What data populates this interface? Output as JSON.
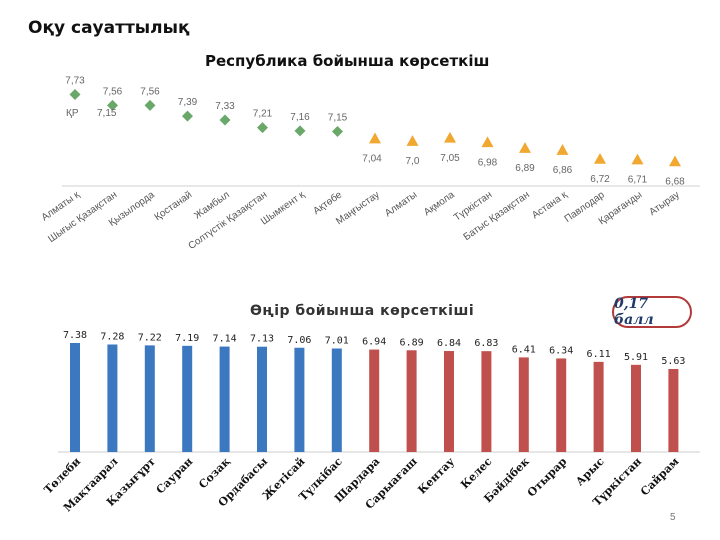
{
  "slide": {
    "title": "Оқу сауаттылық",
    "page_number": "5"
  },
  "badge": {
    "text": "0,17 балл"
  },
  "chart_data": [
    {
      "type": "scatter",
      "title": "Республика бойынша көрсеткіш",
      "reference_label": "ҚР",
      "reference_value": 7.15,
      "categories": [
        "Алматы қ",
        "Шығыс Қазақстан",
        "Қызылорда",
        "Қостанай",
        "Жамбыл",
        "Солтүстік Қазақстан",
        "Шымкент қ",
        "Ақтөбе",
        "Маңғыстау",
        "Алматы",
        "Ақмола",
        "Түркістан",
        "Батыс Қазақстан",
        "Астана қ",
        "Павлодар",
        "Қарағанды",
        "Атырау"
      ],
      "values": [
        7.73,
        7.56,
        7.56,
        7.39,
        7.33,
        7.21,
        7.16,
        7.15,
        7.04,
        7.0,
        7.05,
        6.98,
        6.89,
        6.86,
        6.72,
        6.71,
        6.68
      ],
      "value_labels": [
        "7,73",
        "7,56",
        "7,56",
        "7,39",
        "7,33",
        "7,21",
        "7,16",
        "7,15",
        "7,04",
        "7,0",
        "7,05",
        "6,98",
        "6,89",
        "6,86",
        "6,72",
        "6,71",
        "6,68"
      ],
      "markers": [
        "diamond",
        "diamond",
        "diamond",
        "diamond",
        "diamond",
        "diamond",
        "diamond",
        "diamond",
        "triangle",
        "triangle",
        "triangle",
        "triangle",
        "triangle",
        "triangle",
        "triangle",
        "triangle",
        "triangle"
      ],
      "colors": {
        "above": "#6aa86a",
        "below": "#f0a830"
      },
      "ylim": [
        6.5,
        7.8
      ]
    },
    {
      "type": "bar",
      "title": "Өңір бойынша көрсеткіші",
      "categories": [
        "Төлеби",
        "Мақтаарал",
        "Қазығұрт",
        "Сауран",
        "Созақ",
        "Ордабасы",
        "Жетісай",
        "Түлкібас",
        "Шардара",
        "Сарыағаш",
        "Кентау",
        "Келес",
        "Бәйдібек",
        "Отырар",
        "Арыс",
        "Түркістан",
        "Сайрам"
      ],
      "values": [
        7.38,
        7.28,
        7.22,
        7.19,
        7.14,
        7.13,
        7.06,
        7.01,
        6.94,
        6.89,
        6.84,
        6.83,
        6.41,
        6.34,
        6.11,
        5.91,
        5.63
      ],
      "value_labels": [
        "7.38",
        "7.28",
        "7.22",
        "7.19",
        "7.14",
        "7.13",
        "7.06",
        "7.01",
        "6.94",
        "6.89",
        "6.84",
        "6.83",
        "6.41",
        "6.34",
        "6.11",
        "5.91",
        "5.63"
      ],
      "colors": [
        "#3c78c0",
        "#3c78c0",
        "#3c78c0",
        "#3c78c0",
        "#3c78c0",
        "#3c78c0",
        "#3c78c0",
        "#3c78c0",
        "#c0504d",
        "#c0504d",
        "#c0504d",
        "#c0504d",
        "#c0504d",
        "#c0504d",
        "#c0504d",
        "#c0504d",
        "#c0504d"
      ],
      "ylim": [
        0,
        7.38
      ]
    }
  ]
}
